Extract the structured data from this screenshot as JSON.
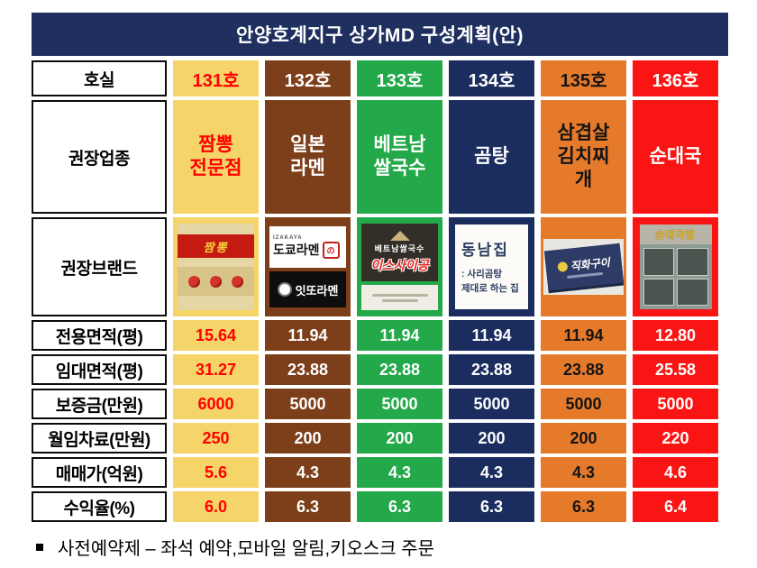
{
  "title": "안양호계지구 상가MD 구성계획(안)",
  "palette": {
    "navy": "#1F3060",
    "yellow": "#F5D469",
    "brown": "#7D3E1A",
    "green": "#23A84A",
    "orange": "#E67A2B",
    "red": "#FA1414",
    "red_accent_text": "#FF0000"
  },
  "row_labels": {
    "room": "호실",
    "business": "권장업종",
    "brand": "권장브랜드"
  },
  "columns": [
    {
      "room": "131호",
      "business": "짬뽕\n전문점"
    },
    {
      "room": "132호",
      "business": "일본\n라멘"
    },
    {
      "room": "133호",
      "business": "베트남\n쌀국수"
    },
    {
      "room": "134호",
      "business": "곰탕"
    },
    {
      "room": "135호",
      "business": "삼겹살\n김치찌\n개"
    },
    {
      "room": "136호",
      "business": "순대국"
    }
  ],
  "brands": {
    "b131": {
      "banner": "짬뽕"
    },
    "b132": {
      "top_label": "IZAKAYA",
      "top": "도쿄라멘",
      "bottom": "잇또라멘"
    },
    "b133": {
      "top": "베트남쌀국수",
      "main": "이스사이공"
    },
    "b134": {
      "name": "동남집",
      "line1": ": 사리곰탕",
      "line2": "제대로 하는 집"
    },
    "b135": {
      "sign": "직화구이"
    },
    "b136": {
      "sign": "순대국밥"
    }
  },
  "rows": [
    {
      "label": "전용면적(평)",
      "values": [
        "15.64",
        "11.94",
        "11.94",
        "11.94",
        "11.94",
        "12.80"
      ]
    },
    {
      "label": "임대면적(평)",
      "values": [
        "31.27",
        "23.88",
        "23.88",
        "23.88",
        "23.88",
        "25.58"
      ]
    },
    {
      "label": "보증금(만원)",
      "values": [
        "6000",
        "5000",
        "5000",
        "5000",
        "5000",
        "5000"
      ]
    },
    {
      "label": "월임차료(만원)",
      "values": [
        "250",
        "200",
        "200",
        "200",
        "200",
        "220"
      ]
    },
    {
      "label": "매매가(억원)",
      "values": [
        "5.6",
        "4.3",
        "4.3",
        "4.3",
        "4.3",
        "4.6"
      ]
    },
    {
      "label": "수익율(%)",
      "values": [
        "6.0",
        "6.3",
        "6.3",
        "6.3",
        "6.3",
        "6.4"
      ]
    }
  ],
  "footer": {
    "text": "사전예약제 – 좌석 예약,모바일 알림,키오스크 주문"
  }
}
